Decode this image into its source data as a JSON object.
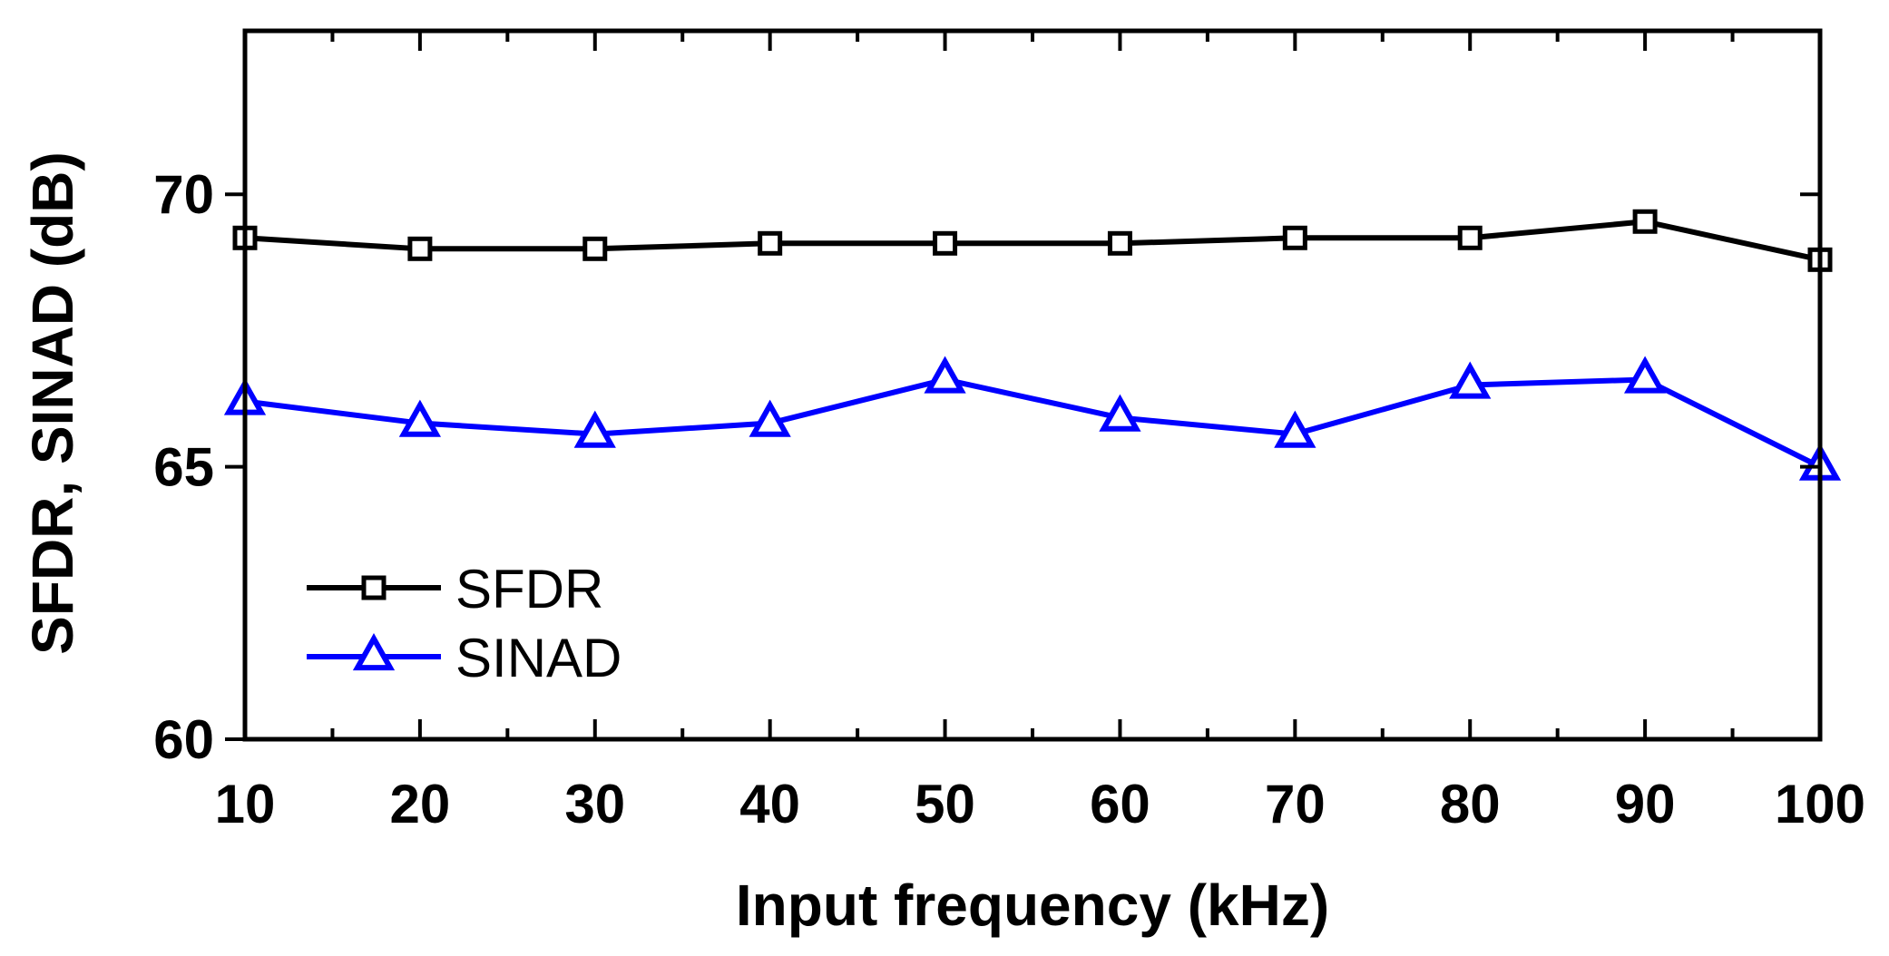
{
  "chart_data": {
    "type": "line",
    "title": "",
    "xlabel": "Input frequency (kHz)",
    "ylabel": "SFDR, SINAD (dB)",
    "x": [
      10,
      20,
      30,
      40,
      50,
      60,
      70,
      80,
      90,
      100
    ],
    "xlim": [
      10,
      100
    ],
    "ylim": [
      60,
      73
    ],
    "xticks": [
      10,
      20,
      30,
      40,
      50,
      60,
      70,
      80,
      90,
      100
    ],
    "xtick_labels": [
      "10",
      "20",
      "30",
      "40",
      "50",
      "60",
      "70",
      "80",
      "90",
      "100"
    ],
    "yticks": [
      60,
      65,
      70
    ],
    "ytick_labels": [
      "60",
      "65",
      "70"
    ],
    "grid": false,
    "legend_position": "bottom-left",
    "series": [
      {
        "name": "SFDR",
        "color": "#000000",
        "marker": "square",
        "values": [
          69.2,
          69.0,
          69.0,
          69.1,
          69.1,
          69.1,
          69.2,
          69.2,
          69.5,
          68.8
        ]
      },
      {
        "name": "SINAD",
        "color": "#0000ff",
        "marker": "triangle",
        "values": [
          66.2,
          65.8,
          65.6,
          65.8,
          66.6,
          65.9,
          65.6,
          66.5,
          66.6,
          65.0
        ]
      }
    ]
  }
}
